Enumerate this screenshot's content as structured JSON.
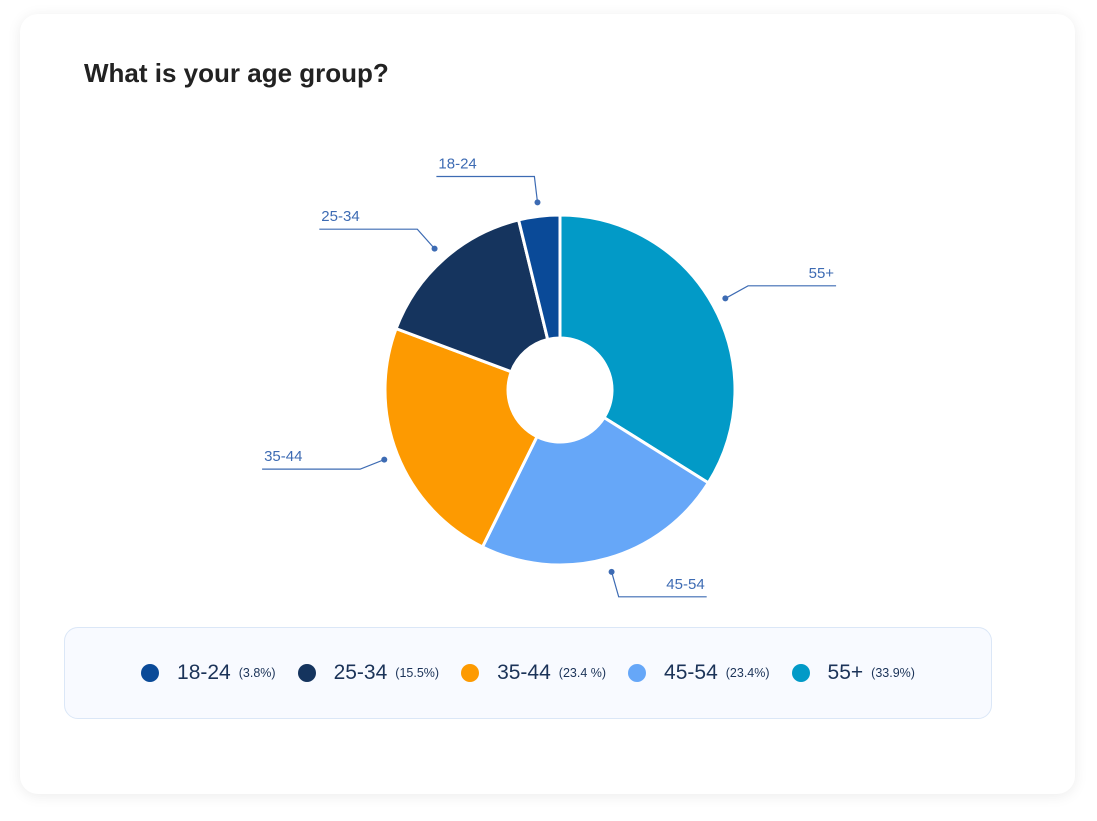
{
  "title": "What is your age group?",
  "chart_data": {
    "type": "pie",
    "donut": true,
    "title": "What is your age group?",
    "slices": [
      {
        "label": "55+",
        "value": 33.9,
        "pct_label": "(33.9%)",
        "color": "#029ac7"
      },
      {
        "label": "45-54",
        "value": 23.4,
        "pct_label": "(23.4%)",
        "color": "#66a7f8"
      },
      {
        "label": "35-44",
        "value": 23.4,
        "pct_label": "(23.4 %)",
        "color": "#fd9a01"
      },
      {
        "label": "25-34",
        "value": 15.5,
        "pct_label": "(15.5%)",
        "color": "#15345e"
      },
      {
        "label": "18-24",
        "value": 3.8,
        "pct_label": "(3.8%)",
        "color": "#0a4a98"
      }
    ],
    "legend_order": [
      4,
      3,
      2,
      1,
      0
    ],
    "legend": "bottom"
  }
}
